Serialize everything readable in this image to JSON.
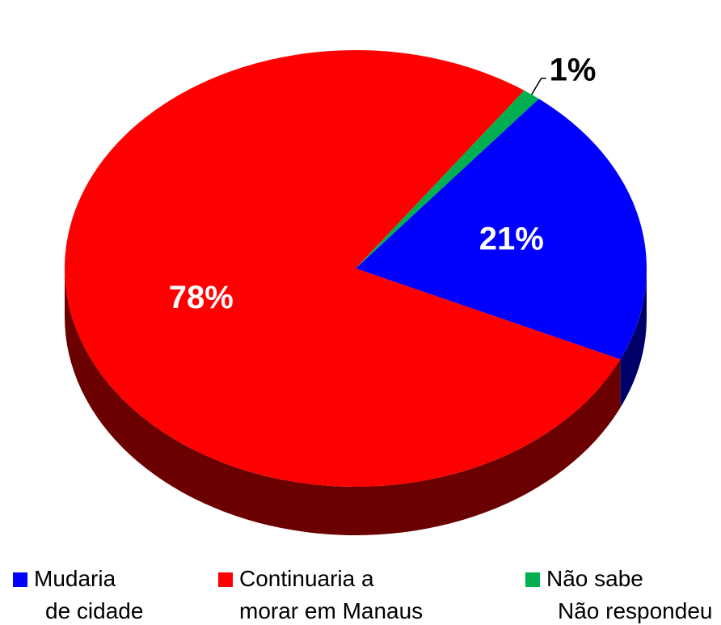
{
  "chart_data": {
    "type": "pie",
    "categories": [
      [
        "Mudaria",
        "de cidade"
      ],
      [
        "Continuaria a",
        "morar em Manaus"
      ],
      [
        "Não sabe",
        "Não respondeu"
      ]
    ],
    "values": [
      21,
      78,
      1
    ],
    "value_labels": [
      "21%",
      "78%",
      "1%"
    ],
    "colors": [
      "#0000ff",
      "#ff0000",
      "#00b050"
    ],
    "legend": "bottom"
  }
}
